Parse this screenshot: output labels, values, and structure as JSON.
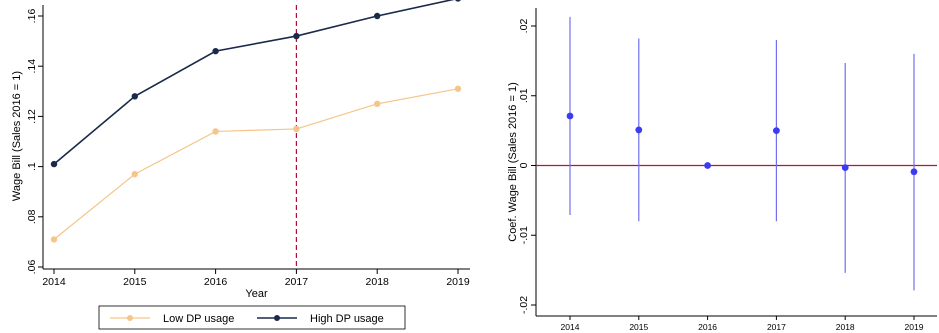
{
  "chart_data": [
    {
      "type": "line",
      "xlabel": "Year",
      "ylabel": "Wage Bill (Sales 2016 = 1)",
      "x": [
        2014,
        2015,
        2016,
        2017,
        2018,
        2019
      ],
      "xticks": [
        "2014",
        "2015",
        "2016",
        "2017",
        "2018",
        "2019"
      ],
      "yticks": [
        ".06",
        ".08",
        ".1",
        ".12",
        ".14",
        ".16"
      ],
      "ylim": [
        0.06,
        0.16
      ],
      "vline_x": 2017,
      "grid": false,
      "legend_position": "bottom",
      "series": [
        {
          "name": "Low DP usage",
          "values": [
            0.071,
            0.097,
            0.114,
            0.115,
            0.125,
            0.131
          ]
        },
        {
          "name": "High DP usage",
          "values": [
            0.101,
            0.128,
            0.146,
            0.152,
            0.16,
            0.167
          ]
        }
      ],
      "colors": {
        "low": "#f5c58a",
        "high": "#1a2a4a",
        "vline": "#b0103a"
      }
    },
    {
      "type": "scatter",
      "xlabel": "",
      "ylabel": "Coef. Wage Bill (Sales 2016 = 1)",
      "x": [
        2014,
        2015,
        2016,
        2017,
        2018,
        2019
      ],
      "xticks": [
        "2014",
        "2015",
        "2016",
        "2017",
        "2018",
        "2019"
      ],
      "yticks": [
        "-.02",
        "-.01",
        "0",
        ".01",
        ".02"
      ],
      "ylim": [
        -0.02,
        0.02
      ],
      "hline_y": 0,
      "grid": false,
      "points": [
        {
          "x": 2014,
          "y": 0.0071,
          "ci": [
            -0.0071,
            0.0213
          ]
        },
        {
          "x": 2015,
          "y": 0.0051,
          "ci": [
            -0.008,
            0.0182
          ]
        },
        {
          "x": 2016,
          "y": 0.0,
          "ci": [
            0.0,
            0.0
          ]
        },
        {
          "x": 2017,
          "y": 0.005,
          "ci": [
            -0.008,
            0.018
          ]
        },
        {
          "x": 2018,
          "y": -0.0003,
          "ci": [
            -0.0154,
            0.0147
          ]
        },
        {
          "x": 2019,
          "y": -0.0009,
          "ci": [
            -0.0179,
            0.016
          ]
        }
      ],
      "colors": {
        "point": "#3b3bf0",
        "ci": "#7070ee",
        "hline": "#c0102e"
      }
    }
  ]
}
